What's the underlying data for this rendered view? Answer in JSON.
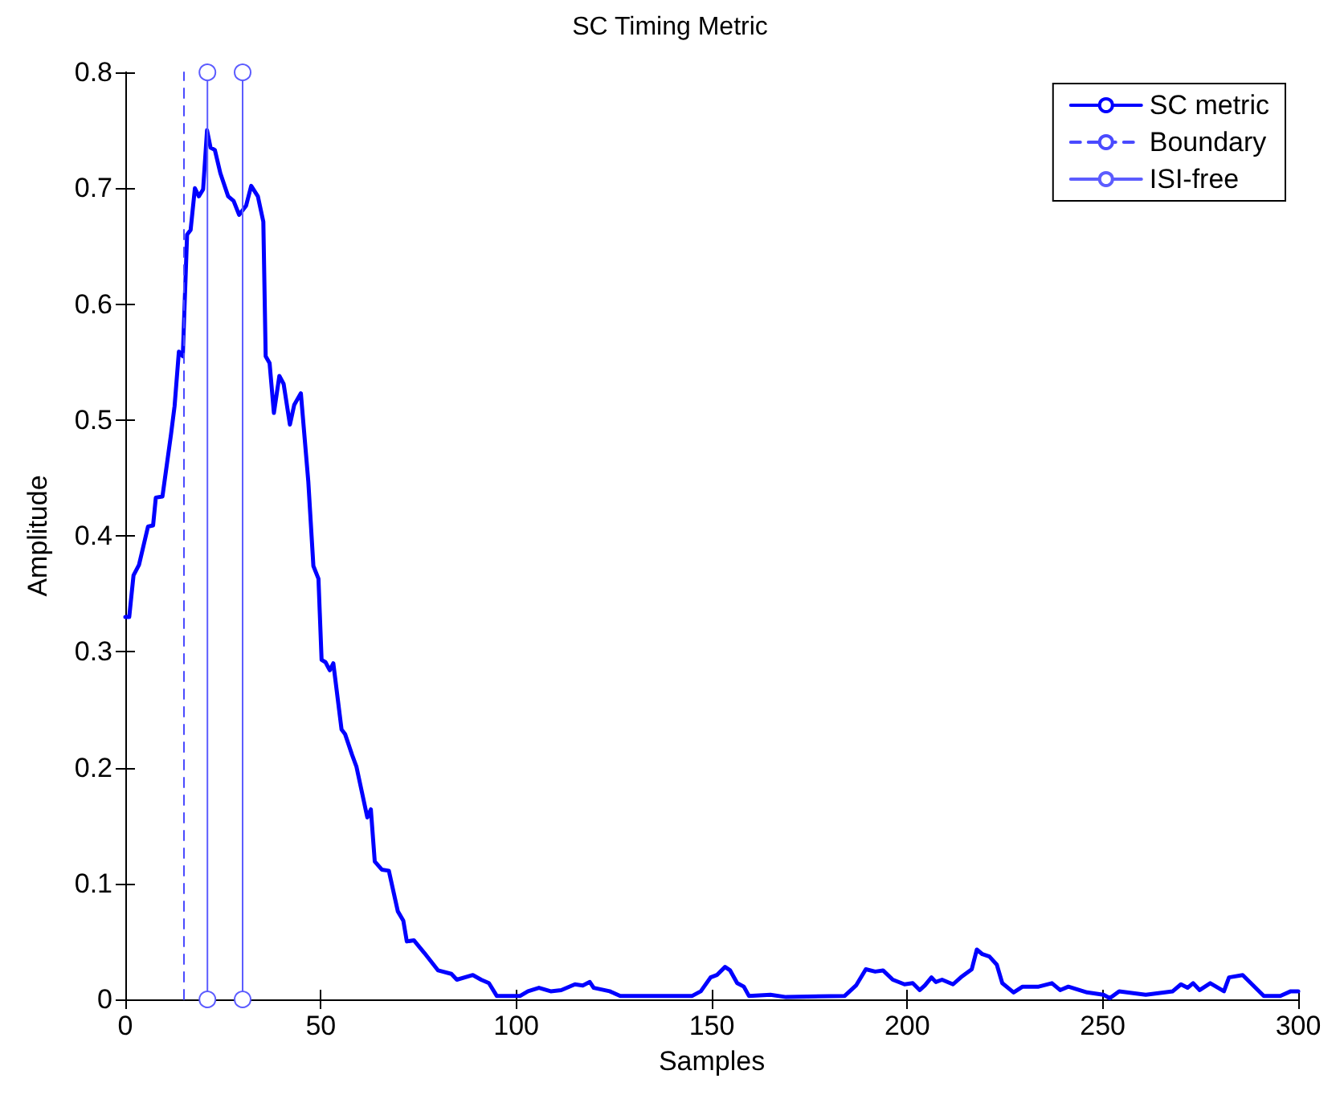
{
  "chart_data": {
    "type": "line",
    "title": "SC Timing Metric",
    "xlabel": "Samples",
    "ylabel": "Amplitude",
    "xlim": [
      0,
      300
    ],
    "xticks": [
      0,
      50,
      100,
      150,
      200,
      250,
      300
    ],
    "ylim": [
      0,
      0.8
    ],
    "yticks": [
      0,
      0.1,
      0.2,
      0.3,
      0.4,
      0.5,
      0.6,
      0.7,
      0.8
    ],
    "grid": false,
    "legend": "top right",
    "series": [
      {
        "name": "SC metric",
        "color": "#0000ff",
        "marker": "none",
        "line_style": "solid",
        "x": [
          0,
          1,
          2.1,
          3.5,
          5.8,
          7.1,
          7.8,
          9.5,
          11.7,
          12.6,
          13.7,
          14.7,
          15.8,
          16.7,
          17.8,
          18.8,
          19.9,
          20.9,
          21.8,
          22.9,
          24.3,
          26.3,
          27.7,
          29.1,
          30.9,
          32.2,
          33.9,
          35.3,
          35.9,
          36.9,
          38.0,
          39.4,
          40.5,
          42.1,
          43.2,
          44.9,
          46.8,
          48.1,
          49.4,
          50.2,
          51.2,
          52.3,
          53.2,
          55.3,
          56.2,
          58.0,
          59.1,
          60.5,
          61.9,
          62.8,
          63.8,
          65.6,
          67.4,
          69.7,
          71.1,
          72.0,
          73.8,
          76.5,
          80.0,
          83.4,
          84.8,
          88.9,
          91,
          93,
          95,
          101,
          103,
          105.8,
          108.8,
          111.5,
          115,
          117,
          118.8,
          119.8,
          123.9,
          126.6,
          145,
          147.2,
          149.7,
          151.3,
          153.4,
          154.7,
          156.5,
          158.2,
          159.5,
          165,
          169,
          184,
          186.9,
          189.4,
          191.8,
          193.8,
          196.3,
          199.3,
          201.4,
          203.2,
          204.5,
          206.2,
          207.3,
          208.9,
          211.7,
          213.7,
          216.5,
          217.8,
          219.2,
          221,
          222.9,
          224.3,
          227.2,
          229.5,
          233.6,
          237,
          239.1,
          241.2,
          246,
          250.2,
          251.8,
          254.2,
          261,
          267.9,
          270,
          271.7,
          273.1,
          274.8,
          277.5,
          281,
          282.3,
          285.8,
          288.5,
          291.2,
          295.4,
          298.1,
          300
        ],
        "values": [
          0.33,
          0.33,
          0.366,
          0.375,
          0.408,
          0.409,
          0.433,
          0.434,
          0.488,
          0.512,
          0.559,
          0.555,
          0.66,
          0.664,
          0.7,
          0.693,
          0.699,
          0.75,
          0.735,
          0.733,
          0.713,
          0.693,
          0.689,
          0.677,
          0.685,
          0.702,
          0.693,
          0.671,
          0.555,
          0.549,
          0.506,
          0.538,
          0.531,
          0.496,
          0.513,
          0.523,
          0.447,
          0.374,
          0.363,
          0.293,
          0.291,
          0.284,
          0.29,
          0.233,
          0.229,
          0.211,
          0.201,
          0.179,
          0.157,
          0.164,
          0.119,
          0.112,
          0.111,
          0.076,
          0.068,
          0.05,
          0.051,
          0.04,
          0.025,
          0.022,
          0.017,
          0.021,
          0.017,
          0.014,
          0.003,
          0.003,
          0.007,
          0.01,
          0.007,
          0.008,
          0.013,
          0.012,
          0.015,
          0.01,
          0.007,
          0.003,
          0.003,
          0.007,
          0.019,
          0.021,
          0.028,
          0.025,
          0.014,
          0.011,
          0.003,
          0.004,
          0.002,
          0.003,
          0.012,
          0.026,
          0.024,
          0.025,
          0.017,
          0.013,
          0.014,
          0.008,
          0.012,
          0.019,
          0.015,
          0.017,
          0.013,
          0.019,
          0.026,
          0.043,
          0.039,
          0.037,
          0.03,
          0.014,
          0.006,
          0.011,
          0.011,
          0.014,
          0.008,
          0.011,
          0.006,
          0.004,
          0.001,
          0.007,
          0.004,
          0.007,
          0.013,
          0.01,
          0.014,
          0.008,
          0.014,
          0.007,
          0.019,
          0.021,
          0.012,
          0.003,
          0.003,
          0.007,
          0.007
        ]
      },
      {
        "name": "Boundary",
        "color": "#4a4aff",
        "marker": "none",
        "line_style": "dashed",
        "x": [
          15,
          15
        ],
        "values": [
          0,
          0.8
        ]
      },
      {
        "name": "ISI-free",
        "color": "#5c5cff",
        "marker": "circle",
        "line_style": "solid",
        "x": [
          21,
          21,
          null,
          30,
          30
        ],
        "values": [
          0,
          0.8,
          null,
          0,
          0.8
        ]
      }
    ]
  }
}
